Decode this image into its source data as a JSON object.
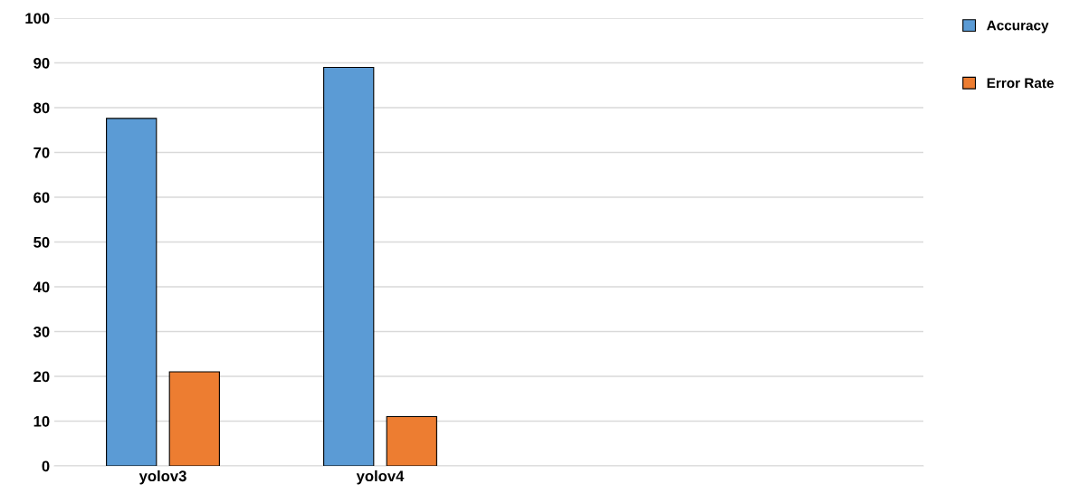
{
  "chart_data": {
    "type": "bar",
    "categories": [
      "yolov3",
      "yolov4",
      null,
      null
    ],
    "series": [
      {
        "name": "Accuracy",
        "color": "#5b9bd5",
        "values": [
          77.6,
          89,
          null,
          null
        ]
      },
      {
        "name": "Error Rate",
        "color": "#ed7d31",
        "values": [
          21,
          11,
          null,
          null
        ]
      }
    ],
    "ylim": [
      0,
      100
    ],
    "yticks": [
      0,
      10,
      20,
      30,
      40,
      50,
      60,
      70,
      80,
      90,
      100
    ],
    "grid": "y",
    "legend": "top right"
  }
}
